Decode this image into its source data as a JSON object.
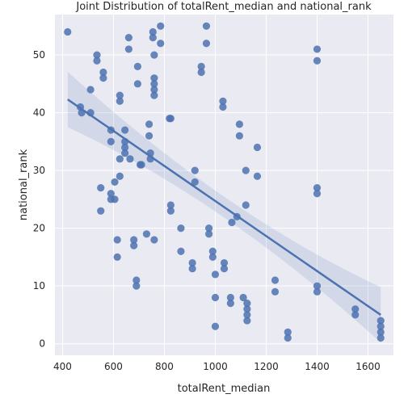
{
  "chart_data": {
    "type": "scatter",
    "title": "Joint Distribution of totalRent_median and national_rank",
    "xlabel": "totalRent_median",
    "ylabel": "national_rank",
    "xlim": [
      370,
      1700
    ],
    "ylim": [
      -2,
      57
    ],
    "xticks": [
      400,
      600,
      800,
      1000,
      1200,
      1400,
      1600
    ],
    "yticks": [
      0,
      10,
      20,
      30,
      40,
      50
    ],
    "grid": true,
    "background": "#eaeaf2",
    "point_color": "#4c72b0",
    "regression": {
      "x": [
        420,
        1650
      ],
      "y": [
        42.3,
        5.0
      ],
      "ci_color": "#4c72b0"
    },
    "points": [
      {
        "x": 420,
        "y": 54
      },
      {
        "x": 470,
        "y": 41
      },
      {
        "x": 475,
        "y": 40
      },
      {
        "x": 510,
        "y": 44
      },
      {
        "x": 510,
        "y": 40
      },
      {
        "x": 535,
        "y": 50
      },
      {
        "x": 535,
        "y": 49
      },
      {
        "x": 550,
        "y": 27
      },
      {
        "x": 550,
        "y": 23
      },
      {
        "x": 560,
        "y": 47
      },
      {
        "x": 560,
        "y": 46
      },
      {
        "x": 590,
        "y": 37
      },
      {
        "x": 590,
        "y": 35
      },
      {
        "x": 590,
        "y": 26
      },
      {
        "x": 590,
        "y": 25
      },
      {
        "x": 605,
        "y": 28
      },
      {
        "x": 605,
        "y": 25
      },
      {
        "x": 615,
        "y": 18
      },
      {
        "x": 615,
        "y": 15
      },
      {
        "x": 625,
        "y": 43
      },
      {
        "x": 625,
        "y": 42
      },
      {
        "x": 625,
        "y": 32
      },
      {
        "x": 625,
        "y": 29
      },
      {
        "x": 645,
        "y": 37
      },
      {
        "x": 645,
        "y": 35
      },
      {
        "x": 645,
        "y": 34
      },
      {
        "x": 645,
        "y": 33
      },
      {
        "x": 660,
        "y": 53
      },
      {
        "x": 660,
        "y": 51
      },
      {
        "x": 665,
        "y": 32
      },
      {
        "x": 680,
        "y": 18
      },
      {
        "x": 680,
        "y": 17
      },
      {
        "x": 690,
        "y": 11
      },
      {
        "x": 690,
        "y": 10
      },
      {
        "x": 695,
        "y": 48
      },
      {
        "x": 695,
        "y": 45
      },
      {
        "x": 705,
        "y": 31
      },
      {
        "x": 710,
        "y": 31
      },
      {
        "x": 730,
        "y": 19
      },
      {
        "x": 740,
        "y": 38
      },
      {
        "x": 740,
        "y": 36
      },
      {
        "x": 745,
        "y": 33
      },
      {
        "x": 745,
        "y": 32
      },
      {
        "x": 755,
        "y": 54
      },
      {
        "x": 755,
        "y": 53
      },
      {
        "x": 760,
        "y": 50
      },
      {
        "x": 760,
        "y": 46
      },
      {
        "x": 760,
        "y": 45
      },
      {
        "x": 760,
        "y": 44
      },
      {
        "x": 760,
        "y": 43
      },
      {
        "x": 760,
        "y": 18
      },
      {
        "x": 785,
        "y": 55
      },
      {
        "x": 785,
        "y": 52
      },
      {
        "x": 820,
        "y": 39
      },
      {
        "x": 825,
        "y": 39
      },
      {
        "x": 825,
        "y": 24
      },
      {
        "x": 825,
        "y": 23
      },
      {
        "x": 865,
        "y": 20
      },
      {
        "x": 865,
        "y": 16
      },
      {
        "x": 910,
        "y": 14
      },
      {
        "x": 910,
        "y": 13
      },
      {
        "x": 920,
        "y": 30
      },
      {
        "x": 920,
        "y": 28
      },
      {
        "x": 945,
        "y": 48
      },
      {
        "x": 945,
        "y": 47
      },
      {
        "x": 965,
        "y": 55
      },
      {
        "x": 965,
        "y": 52
      },
      {
        "x": 975,
        "y": 20
      },
      {
        "x": 975,
        "y": 19
      },
      {
        "x": 990,
        "y": 16
      },
      {
        "x": 990,
        "y": 15
      },
      {
        "x": 1000,
        "y": 12
      },
      {
        "x": 1000,
        "y": 8
      },
      {
        "x": 1000,
        "y": 3
      },
      {
        "x": 1030,
        "y": 42
      },
      {
        "x": 1030,
        "y": 41
      },
      {
        "x": 1035,
        "y": 14
      },
      {
        "x": 1035,
        "y": 13
      },
      {
        "x": 1060,
        "y": 8
      },
      {
        "x": 1060,
        "y": 7
      },
      {
        "x": 1065,
        "y": 21
      },
      {
        "x": 1085,
        "y": 22
      },
      {
        "x": 1095,
        "y": 38
      },
      {
        "x": 1095,
        "y": 36
      },
      {
        "x": 1110,
        "y": 8
      },
      {
        "x": 1120,
        "y": 30
      },
      {
        "x": 1120,
        "y": 24
      },
      {
        "x": 1125,
        "y": 7
      },
      {
        "x": 1125,
        "y": 6
      },
      {
        "x": 1125,
        "y": 5
      },
      {
        "x": 1125,
        "y": 4
      },
      {
        "x": 1165,
        "y": 34
      },
      {
        "x": 1165,
        "y": 29
      },
      {
        "x": 1235,
        "y": 11
      },
      {
        "x": 1235,
        "y": 9
      },
      {
        "x": 1285,
        "y": 2
      },
      {
        "x": 1285,
        "y": 1
      },
      {
        "x": 1400,
        "y": 51
      },
      {
        "x": 1400,
        "y": 49
      },
      {
        "x": 1400,
        "y": 27
      },
      {
        "x": 1400,
        "y": 26
      },
      {
        "x": 1400,
        "y": 10
      },
      {
        "x": 1400,
        "y": 9
      },
      {
        "x": 1550,
        "y": 6
      },
      {
        "x": 1550,
        "y": 5
      },
      {
        "x": 1650,
        "y": 4
      },
      {
        "x": 1650,
        "y": 3
      },
      {
        "x": 1650,
        "y": 2
      },
      {
        "x": 1650,
        "y": 1
      }
    ]
  }
}
